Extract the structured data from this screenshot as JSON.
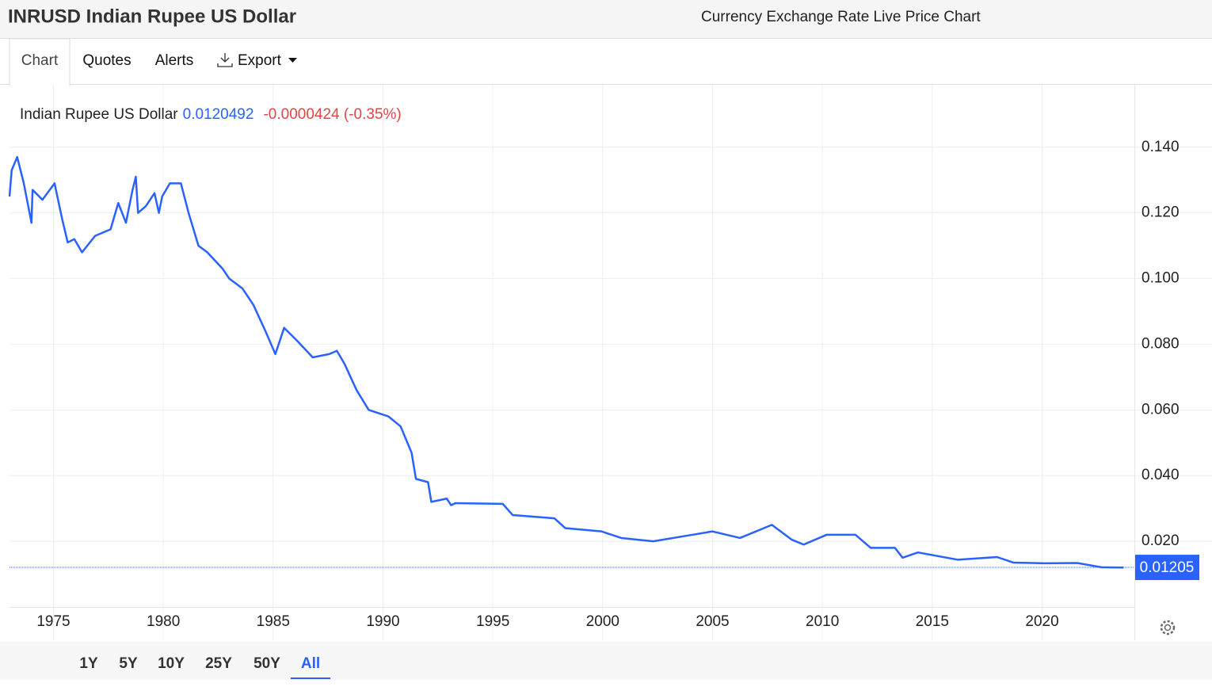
{
  "header": {
    "title": "INRUSD Indian Rupee US Dollar",
    "subtitle": "Currency Exchange Rate Live Price Chart"
  },
  "tabs": [
    "Chart",
    "Quotes",
    "Alerts",
    "Export"
  ],
  "ranges": [
    "1Y",
    "5Y",
    "10Y",
    "25Y",
    "50Y",
    "All"
  ],
  "active_range": 5,
  "chart_data": {
    "type": "line",
    "x": [
      1973.0,
      1973.1,
      1973.35,
      1973.65,
      1974.0,
      1974.05,
      1974.5,
      1975.05,
      1975.4,
      1975.65,
      1975.95,
      1976.3,
      1976.9,
      1977.6,
      1977.95,
      1978.3,
      1978.6,
      1978.75,
      1978.85,
      1979.2,
      1979.6,
      1979.8,
      1979.95,
      1980.3,
      1980.8,
      1981.15,
      1981.6,
      1982.0,
      1982.7,
      1983.0,
      1983.6,
      1984.1,
      1984.65,
      1985.1,
      1985.5,
      1986.1,
      1986.8,
      1987.55,
      1987.9,
      1988.25,
      1988.8,
      1989.35,
      1990.25,
      1990.8,
      1991.3,
      1991.5,
      1992.05,
      1992.2,
      1992.9,
      1993.1,
      1993.3,
      1995.45,
      1995.9,
      1997.8,
      1998.3,
      1999.95,
      2000.85,
      2002.3,
      2004.1,
      2005.0,
      2006.25,
      2007.7,
      2008.6,
      2009.15,
      2010.2,
      2011.5,
      2012.2,
      2013.3,
      2013.65,
      2014.35,
      2016.15,
      2017.95,
      2018.7,
      2020.15,
      2021.6,
      2022.7,
      2023.7
    ],
    "series": [
      {
        "name": "Indian Rupee US Dollar",
        "color": "#2962ff",
        "values": [
          0.125,
          0.133,
          0.137,
          0.129,
          0.117,
          0.127,
          0.124,
          0.129,
          0.118,
          0.111,
          0.112,
          0.108,
          0.113,
          0.115,
          0.123,
          0.117,
          0.127,
          0.131,
          0.12,
          0.122,
          0.126,
          0.12,
          0.125,
          0.129,
          0.129,
          0.12,
          0.11,
          0.108,
          0.103,
          0.1,
          0.097,
          0.092,
          0.084,
          0.077,
          0.085,
          0.081,
          0.076,
          0.077,
          0.078,
          0.074,
          0.066,
          0.06,
          0.058,
          0.055,
          0.047,
          0.039,
          0.038,
          0.032,
          0.033,
          0.031,
          0.0316,
          0.0314,
          0.028,
          0.027,
          0.024,
          0.023,
          0.021,
          0.02,
          0.022,
          0.023,
          0.021,
          0.025,
          0.0205,
          0.019,
          0.022,
          0.022,
          0.018,
          0.018,
          0.015,
          0.0166,
          0.0144,
          0.0152,
          0.0135,
          0.0133,
          0.0134,
          0.0121,
          0.012
        ]
      }
    ],
    "last_price": 0.0120492,
    "change": "-0.0000424 (-0.35%)",
    "last_value": 0.01205,
    "xlim": [
      1973,
      2024.2
    ],
    "ylim": [
      0,
      0.159
    ],
    "xticks": [
      1975,
      1980,
      1985,
      1990,
      1995,
      2000,
      2005,
      2010,
      2015,
      2020
    ],
    "yticks": [
      {
        "value": 0.02,
        "label": "0.020"
      },
      {
        "value": 0.04,
        "label": "0.040"
      },
      {
        "value": 0.06,
        "label": "0.060"
      },
      {
        "value": 0.08,
        "label": "0.080"
      },
      {
        "value": 0.1,
        "label": "0.100"
      },
      {
        "value": 0.12,
        "label": "0.120"
      },
      {
        "value": 0.14,
        "label": "0.140"
      }
    ],
    "grid": true
  }
}
